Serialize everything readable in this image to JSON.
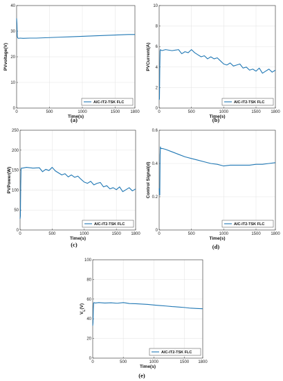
{
  "chart_data": [
    {
      "id": "a",
      "type": "line",
      "caption": "(a)",
      "xlabel": "Time(s)",
      "ylabel": "PVvoltage(V)",
      "xlim": [
        0,
        1800
      ],
      "ylim": [
        0,
        40
      ],
      "xticks": [
        0,
        500,
        1000,
        1500,
        1800
      ],
      "yticks": [
        0,
        10,
        20,
        30,
        40
      ],
      "grid": true,
      "legend_position": "bottom-right",
      "series": [
        {
          "name": "AIC-IT2-TSK FLC",
          "color": "#1f77b4",
          "x": [
            0,
            5,
            10,
            15,
            20,
            30,
            50,
            100,
            200,
            300,
            400,
            500,
            600,
            700,
            800,
            900,
            1000,
            1100,
            1200,
            1300,
            1400,
            1500,
            1600,
            1700,
            1800
          ],
          "y": [
            35,
            33,
            28,
            27.5,
            27.3,
            27.2,
            27.3,
            27.2,
            27.3,
            27.3,
            27.4,
            27.5,
            27.6,
            27.7,
            27.8,
            27.9,
            28,
            28.1,
            28.2,
            28.3,
            28.4,
            28.5,
            28.6,
            28.7,
            28.7
          ]
        }
      ]
    },
    {
      "id": "b",
      "type": "line",
      "caption": "(b)",
      "xlabel": "Time(s)",
      "ylabel": "PVCurrent(A)",
      "xlim": [
        0,
        1800
      ],
      "ylim": [
        0,
        10
      ],
      "xticks": [
        0,
        500,
        1000,
        1500,
        1800
      ],
      "yticks": [
        0,
        2,
        4,
        6,
        8,
        10
      ],
      "grid": true,
      "legend_position": "bottom-right",
      "series": [
        {
          "name": "AIC-IT2-TSK FLC",
          "color": "#1f77b4",
          "x": [
            0,
            5,
            10,
            15,
            20,
            40,
            100,
            200,
            300,
            350,
            400,
            450,
            500,
            550,
            600,
            650,
            700,
            750,
            800,
            850,
            900,
            950,
            1000,
            1050,
            1100,
            1150,
            1200,
            1250,
            1300,
            1350,
            1400,
            1450,
            1500,
            1550,
            1600,
            1650,
            1700,
            1750,
            1800
          ],
          "y": [
            0.8,
            0.9,
            3.9,
            5.6,
            5.7,
            5.6,
            5.7,
            5.6,
            5.7,
            5.3,
            5.5,
            5.4,
            5.7,
            5.4,
            5.2,
            5.0,
            5.1,
            4.8,
            5.0,
            4.8,
            4.9,
            4.6,
            4.3,
            4.2,
            4.4,
            4.1,
            4.2,
            4.3,
            3.9,
            4.0,
            3.7,
            3.8,
            3.6,
            3.9,
            3.4,
            3.6,
            3.8,
            3.5,
            3.7
          ]
        }
      ]
    },
    {
      "id": "c",
      "type": "line",
      "caption": "(c)",
      "xlabel": "Time(s)",
      "ylabel": "PVPower(W)",
      "xlim": [
        0,
        1800
      ],
      "ylim": [
        0,
        250
      ],
      "xticks": [
        0,
        500,
        1000,
        1500,
        1800
      ],
      "yticks": [
        0,
        50,
        100,
        150,
        200,
        250
      ],
      "grid": true,
      "legend_position": "bottom-right",
      "series": [
        {
          "name": "AIC-IT2-TSK FLC",
          "color": "#1f77b4",
          "x": [
            0,
            5,
            10,
            15,
            20,
            40,
            100,
            200,
            300,
            350,
            400,
            450,
            500,
            550,
            600,
            650,
            700,
            750,
            800,
            850,
            900,
            950,
            1000,
            1050,
            1100,
            1150,
            1200,
            1250,
            1300,
            1350,
            1400,
            1450,
            1500,
            1550,
            1600,
            1650,
            1700,
            1750,
            1800
          ],
          "y": [
            28,
            35,
            110,
            152,
            155,
            155,
            157,
            155,
            156,
            146,
            152,
            149,
            157,
            148,
            143,
            138,
            141,
            133,
            138,
            132,
            135,
            127,
            120,
            117,
            122,
            113,
            117,
            119,
            108,
            111,
            103,
            106,
            101,
            108,
            96,
            101,
            106,
            98,
            103
          ]
        }
      ]
    },
    {
      "id": "d",
      "type": "line",
      "caption": "(d)",
      "xlabel": "Time(s)",
      "ylabel": "Control Signal(d)",
      "xlim": [
        0,
        1800
      ],
      "ylim": [
        0,
        0.6
      ],
      "xticks": [
        0,
        500,
        1000,
        1500,
        1800
      ],
      "yticks": [
        0,
        0.2,
        0.4,
        0.6
      ],
      "grid": true,
      "legend_position": "bottom-right",
      "series": [
        {
          "name": "AIC-IT2-TSK FLC",
          "color": "#1f77b4",
          "x": [
            0,
            10,
            15,
            20,
            25,
            30,
            50,
            100,
            200,
            300,
            400,
            500,
            600,
            700,
            800,
            900,
            1000,
            1100,
            1200,
            1300,
            1400,
            1500,
            1600,
            1700,
            1800
          ],
          "y": [
            0.25,
            0.21,
            0.45,
            0.5,
            0.49,
            0.49,
            0.49,
            0.485,
            0.47,
            0.455,
            0.44,
            0.43,
            0.42,
            0.41,
            0.4,
            0.395,
            0.385,
            0.39,
            0.39,
            0.39,
            0.39,
            0.395,
            0.395,
            0.4,
            0.405
          ]
        }
      ]
    },
    {
      "id": "e",
      "type": "line",
      "caption": "(e)",
      "xlabel": "Time(s)",
      "ylabel": "V_L(V)",
      "xlim": [
        0,
        1800
      ],
      "ylim": [
        0,
        100
      ],
      "xticks": [
        0,
        500,
        1000,
        1500,
        1800
      ],
      "yticks": [
        0,
        20,
        40,
        60,
        80,
        100
      ],
      "grid": true,
      "legend_position": "bottom-right",
      "series": [
        {
          "name": "AIC-IT2-TSK FLC",
          "color": "#1f77b4",
          "x": [
            0,
            5,
            10,
            15,
            20,
            40,
            100,
            200,
            300,
            400,
            500,
            550,
            600,
            700,
            800,
            900,
            1000,
            1100,
            1200,
            1300,
            1400,
            1500,
            1600,
            1700,
            1800
          ],
          "y": [
            33,
            36,
            50,
            56,
            56.5,
            56,
            56.5,
            56,
            56.3,
            55.8,
            56.5,
            56,
            55.5,
            55.3,
            55,
            54.6,
            54,
            53.5,
            53,
            52.4,
            52,
            51.5,
            50.8,
            50.5,
            50.2
          ]
        }
      ]
    }
  ]
}
